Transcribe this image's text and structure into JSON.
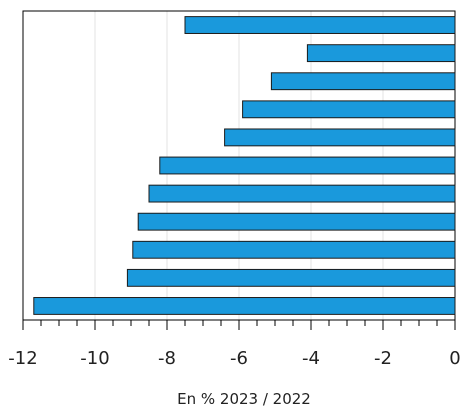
{
  "chart_data": {
    "type": "bar",
    "orientation": "horizontal",
    "values": [
      -7.5,
      -4.1,
      -5.1,
      -5.9,
      -6.4,
      -8.2,
      -8.5,
      -8.8,
      -8.95,
      -9.1,
      -11.7
    ],
    "xlim": [
      -12,
      0
    ],
    "x_ticks": [
      "-12",
      "-10",
      "-8",
      "-6",
      "-4",
      "-2",
      "0"
    ],
    "x_tick_values": [
      -12,
      -10,
      -8,
      -6,
      -4,
      -2,
      0
    ],
    "minor_tick_step": 0.5,
    "xlabel": "En % 2023 / 2022",
    "grid": "vertical",
    "category_labels_visible": false
  },
  "colors": {
    "bar_fill": "#1a99dc",
    "bar_stroke": "#1b1b1b",
    "grid": "#e3e3e3",
    "axis": "#000000",
    "text": "#222222"
  }
}
